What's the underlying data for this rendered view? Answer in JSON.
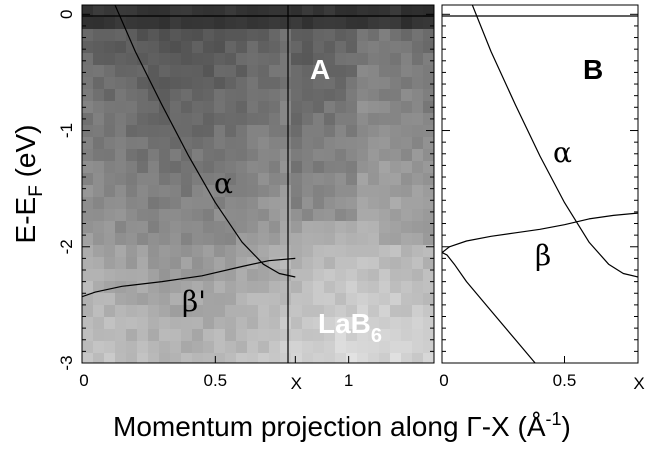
{
  "chart_data": [
    {
      "type": "heatmap",
      "panel_label": "A",
      "compound_label": {
        "main": "LaB",
        "subscript": "6"
      },
      "ylabel": {
        "main": "E-E",
        "subscript": "F",
        "unit": " (eV)"
      },
      "xlabel": {
        "main": "Momentum projection along Γ-X (Å",
        "superscript": "-1",
        "end": ")"
      },
      "xlim": [
        0,
        1.32
      ],
      "ylim": [
        -3,
        0.08
      ],
      "x_ticks": [
        {
          "value": 0,
          "label": "0"
        },
        {
          "value": 0.5,
          "label": "0.5"
        },
        {
          "value": 0.8,
          "label": "X"
        },
        {
          "value": 1,
          "label": "1"
        }
      ],
      "y_ticks": [
        {
          "value": 0,
          "label": "0"
        },
        {
          "value": -1,
          "label": "-1"
        },
        {
          "value": -2,
          "label": "-2"
        },
        {
          "value": -3,
          "label": "-3"
        }
      ],
      "fermi_level": 0,
      "x_boundary": 0.8,
      "colormap": "grayscale, light = high intensity",
      "series": [
        {
          "name": "α",
          "x": [
            0.12,
            0.2,
            0.3,
            0.4,
            0.5,
            0.6,
            0.68,
            0.74,
            0.8
          ],
          "y": [
            0.1,
            -0.32,
            -0.78,
            -1.22,
            -1.62,
            -1.96,
            -2.15,
            -2.23,
            -2.26
          ]
        },
        {
          "name": "β'",
          "x": [
            0.0,
            0.05,
            0.15,
            0.3,
            0.45,
            0.6,
            0.7,
            0.8
          ],
          "y": [
            -2.43,
            -2.39,
            -2.34,
            -2.3,
            -2.25,
            -2.17,
            -2.12,
            -2.1
          ]
        }
      ]
    },
    {
      "type": "line",
      "panel_label": "B",
      "xlim": [
        0,
        0.8
      ],
      "ylim": [
        -3,
        0.08
      ],
      "x_ticks": [
        {
          "value": 0,
          "label": "0"
        },
        {
          "value": 0.5,
          "label": "0.5"
        },
        {
          "value": 0.8,
          "label": "X"
        }
      ],
      "fermi_level": 0,
      "series": [
        {
          "name": "α",
          "x": [
            0.12,
            0.2,
            0.3,
            0.4,
            0.5,
            0.6,
            0.68,
            0.74,
            0.8
          ],
          "y": [
            0.1,
            -0.32,
            -0.78,
            -1.22,
            -1.62,
            -1.96,
            -2.15,
            -2.23,
            -2.26
          ]
        },
        {
          "name": "β",
          "x": [
            0.0,
            0.03,
            0.1,
            0.2,
            0.3,
            0.4,
            0.5,
            0.6,
            0.7,
            0.8
          ],
          "y": [
            -2.05,
            -2.0,
            -1.95,
            -1.91,
            -1.88,
            -1.85,
            -1.81,
            -1.76,
            -1.73,
            -1.71
          ]
        },
        {
          "name": "",
          "x": [
            0.0,
            0.02,
            0.05,
            0.1,
            0.2,
            0.3,
            0.38
          ],
          "y": [
            -2.05,
            -2.07,
            -2.15,
            -2.3,
            -2.55,
            -2.8,
            -3.0
          ]
        }
      ]
    }
  ]
}
